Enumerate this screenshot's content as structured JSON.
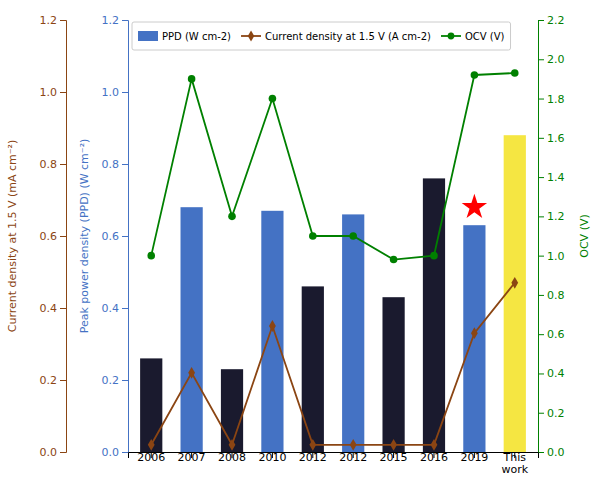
{
  "chart_data": {
    "type": "bar",
    "categories": [
      "2006",
      "2007",
      "2008",
      "2010",
      "2012",
      "2012",
      "2015",
      "2016",
      "2019",
      "This\nwork"
    ],
    "series": [
      {
        "name": "PPD (W cm-2)",
        "type": "bar",
        "color": "#4472c4",
        "colors": [
          "#1a1a2e",
          "#4472c4",
          "#1a1a2e",
          "#4472c4",
          "#1a1a2e",
          "#4472c4",
          "#1a1a2e",
          "#1a1a2e",
          "#4472c4",
          "#f5e642"
        ],
        "values": [
          0.26,
          0.68,
          0.23,
          0.67,
          0.46,
          0.66,
          0.43,
          0.76,
          0.63,
          0.88
        ]
      },
      {
        "name": "Current density at 1.5 V (A cm-2)",
        "type": "line",
        "color": "#8B4513",
        "marker": "diamond",
        "values": [
          0.02,
          0.22,
          0.02,
          0.35,
          0.02,
          0.02,
          0.02,
          0.02,
          0.33,
          0.47
        ]
      },
      {
        "name": "OCV (V)",
        "type": "line",
        "color": "green",
        "marker": "circle",
        "axis": "y2",
        "values": [
          1.0,
          1.9,
          1.2,
          1.8,
          1.1,
          1.1,
          0.98,
          1.0,
          1.92,
          1.93
        ]
      }
    ],
    "ylim": [
      0,
      1.2
    ],
    "yticks": [
      {
        "value": 0,
        "label": "0.0"
      },
      0.2,
      0.4,
      0.6,
      0.8,
      {
        "value": 1.0,
        "label": "1.0"
      },
      1.2
    ],
    "y2lim": [
      0,
      2.2
    ],
    "y2ticks": [
      {
        "value": 0,
        "label": "0.0"
      },
      0.2,
      0.4,
      0.6,
      0.8,
      {
        "value": 1.0,
        "label": "1.0"
      },
      1.2,
      1.4,
      1.6,
      1.8,
      {
        "value": 2.0,
        "label": "2.0"
      },
      2.2
    ],
    "y_label": "Peak power density (PPD) (W cm⁻²)",
    "y_label_outer": "Current density at 1.5 V (mA cm⁻²)",
    "y2_label": "OCV (V)",
    "annotations": [
      {
        "x": 8,
        "y": 0.68,
        "marker": "star",
        "color": "red"
      }
    ],
    "legend": "upper left",
    "grid": false
  }
}
